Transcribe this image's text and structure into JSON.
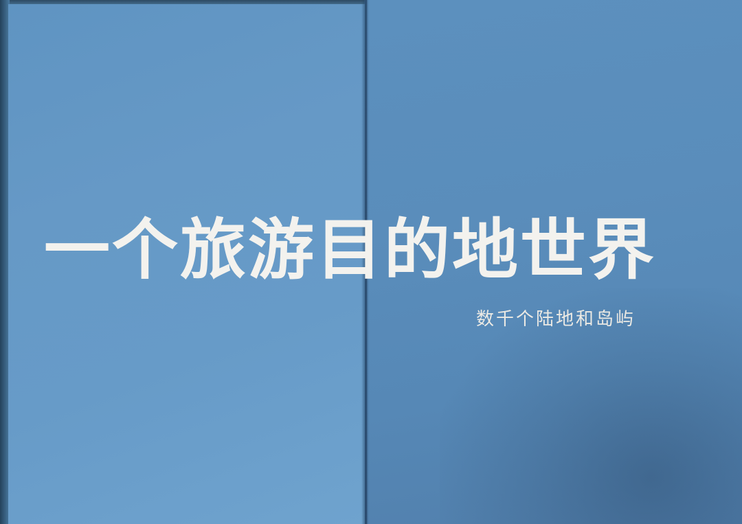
{
  "photo": {
    "title": "一个旅游目的地世界",
    "subtitle": "数千个陆地和岛屿",
    "colors": {
      "page_left": "#679bc8",
      "page_right": "#5a8dbb",
      "text": "#f3f2ee"
    }
  }
}
